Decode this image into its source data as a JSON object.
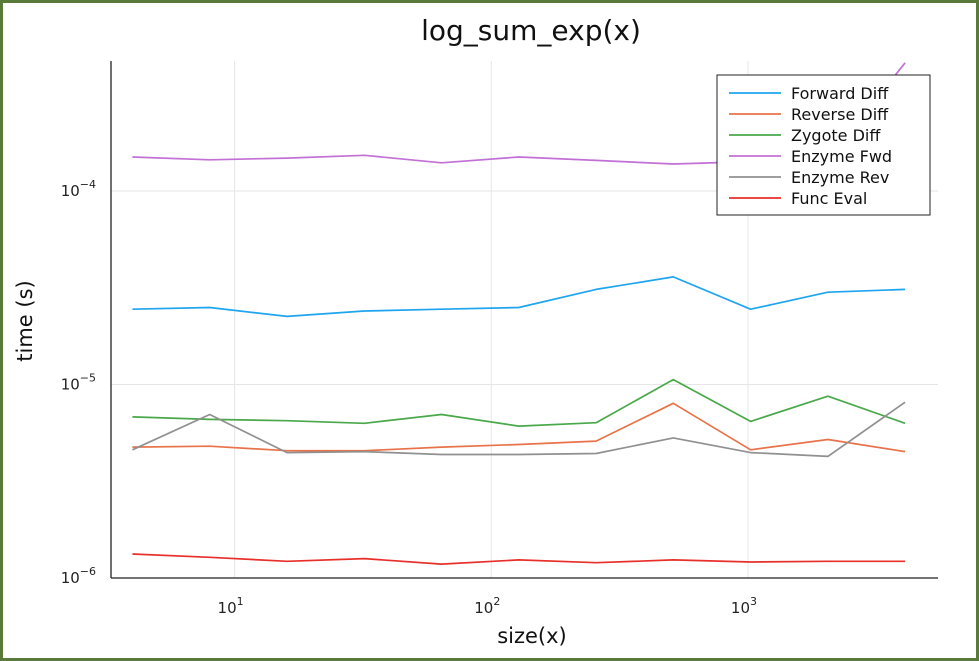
{
  "chart_data": {
    "type": "line",
    "title": "log_sum_exp(x)",
    "xlabel": "size(x)",
    "ylabel": "time (s)",
    "xscale": "log",
    "yscale": "log",
    "xlim": [
      3.3,
      5500
    ],
    "ylim": [
      1e-06,
      0.00047
    ],
    "x_ticks": [
      {
        "value": 10,
        "base": "10",
        "exp": "1"
      },
      {
        "value": 100,
        "base": "10",
        "exp": "2"
      },
      {
        "value": 1000,
        "base": "10",
        "exp": "3"
      }
    ],
    "y_ticks": [
      {
        "value": 1e-06,
        "base": "10",
        "exp": "−6"
      },
      {
        "value": 1e-05,
        "base": "10",
        "exp": "−5"
      },
      {
        "value": 0.0001,
        "base": "10",
        "exp": "−4"
      }
    ],
    "grid": true,
    "legend_position": "top-right",
    "x": [
      4,
      8,
      16,
      32,
      64,
      128,
      256,
      512,
      1024,
      2048,
      4096
    ],
    "series": [
      {
        "name": "Forward Diff",
        "color": "#1fa5ef",
        "values": [
          2.45e-05,
          2.5e-05,
          2.25e-05,
          2.4e-05,
          2.45e-05,
          2.5e-05,
          3.1e-05,
          3.6e-05,
          2.45e-05,
          3e-05,
          3.1e-05
        ]
      },
      {
        "name": "Reverse Diff",
        "color": "#e8734a",
        "values": [
          4.75e-06,
          4.8e-06,
          4.55e-06,
          4.55e-06,
          4.75e-06,
          4.9e-06,
          5.1e-06,
          8e-06,
          4.6e-06,
          5.2e-06,
          4.5e-06
        ]
      },
      {
        "name": "Zygote Diff",
        "color": "#4aa84a",
        "values": [
          6.8e-06,
          6.6e-06,
          6.5e-06,
          6.3e-06,
          7e-06,
          6.1e-06,
          6.35e-06,
          1.06e-05,
          6.45e-06,
          8.7e-06,
          6.3e-06
        ]
      },
      {
        "name": "Enzyme Fwd",
        "color": "#c270d6",
        "values": [
          0.00015,
          0.000145,
          0.000148,
          0.000153,
          0.00014,
          0.00015,
          0.000144,
          0.000138,
          0.000142,
          0.000145,
          0.00046
        ]
      },
      {
        "name": "Enzyme Rev",
        "color": "#909090",
        "values": [
          4.6e-06,
          7e-06,
          4.45e-06,
          4.5e-06,
          4.35e-06,
          4.35e-06,
          4.4e-06,
          5.3e-06,
          4.45e-06,
          4.25e-06,
          8.1e-06
        ]
      },
      {
        "name": "Func Eval",
        "color": "#e8302a",
        "values": [
          1.33e-06,
          1.28e-06,
          1.22e-06,
          1.26e-06,
          1.18e-06,
          1.24e-06,
          1.2e-06,
          1.24e-06,
          1.21e-06,
          1.22e-06,
          1.22e-06
        ]
      }
    ]
  }
}
